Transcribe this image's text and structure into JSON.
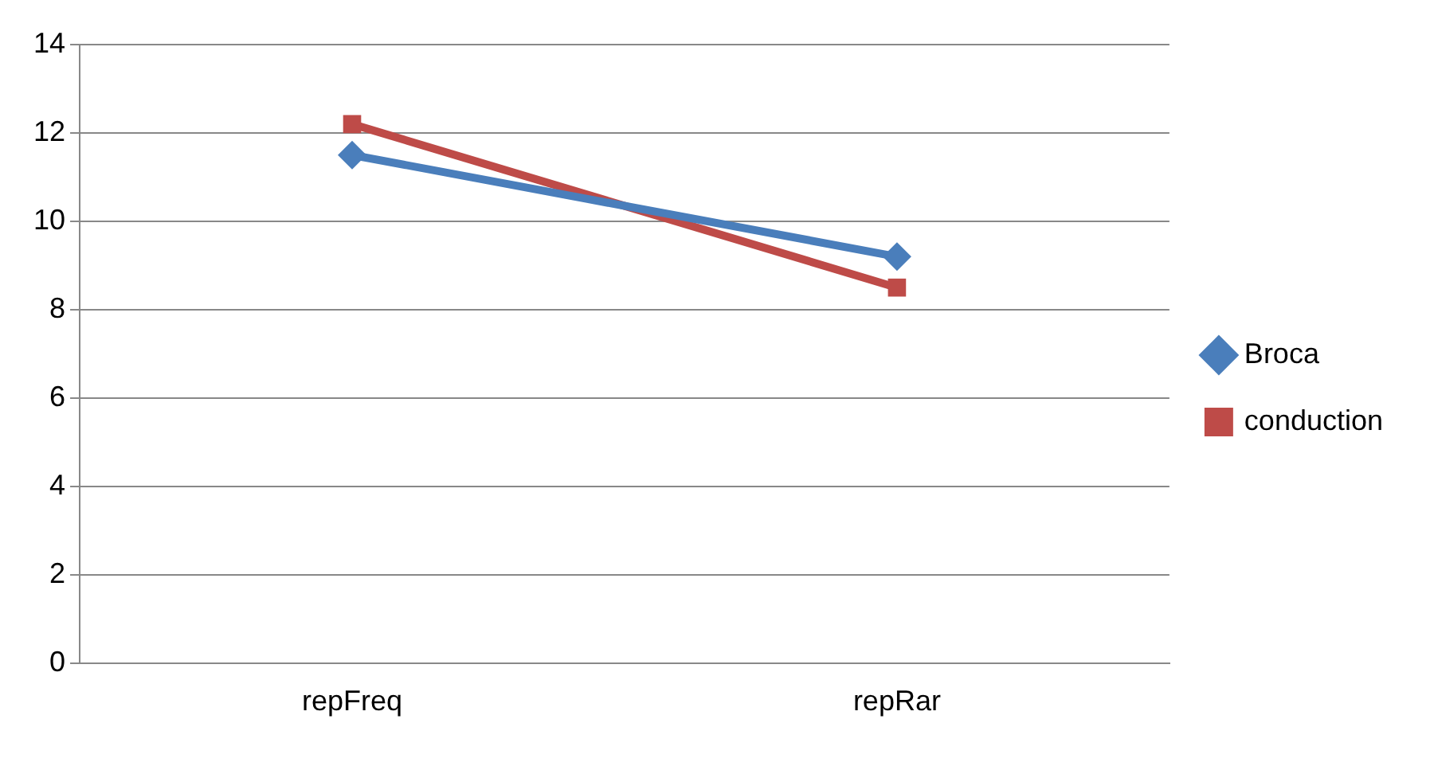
{
  "chart_data": {
    "type": "line",
    "categories": [
      "repFreq",
      "repRar"
    ],
    "series": [
      {
        "name": "Broca",
        "color": "#4a7ebb",
        "values": [
          11.5,
          9.2
        ],
        "marker": "diamond"
      },
      {
        "name": "conduction",
        "color": "#be4b48",
        "values": [
          12.2,
          8.5
        ],
        "marker": "square"
      }
    ],
    "ylim": [
      0,
      14
    ],
    "yticks": [
      0,
      2,
      4,
      6,
      8,
      10,
      12,
      14
    ],
    "grid": "y",
    "legend": "right",
    "line_style": "solid"
  }
}
